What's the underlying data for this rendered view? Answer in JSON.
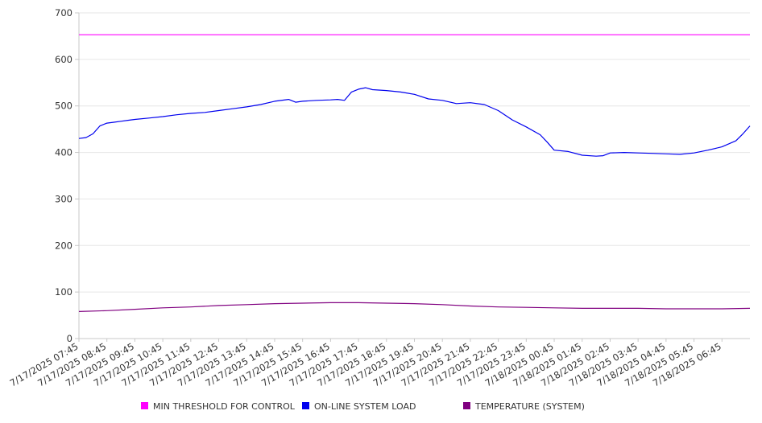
{
  "chart_data": {
    "type": "line",
    "title": "",
    "xlabel": "",
    "ylabel": "",
    "ylim": [
      0,
      700
    ],
    "yticks": [
      0,
      100,
      200,
      300,
      400,
      500,
      600,
      700
    ],
    "grid": true,
    "legend_position": "bottom",
    "x_tick_labels": [
      "7/17/2025 07:45",
      "7/17/2025 08:45",
      "7/17/2025 09:45",
      "7/17/2025 10:45",
      "7/17/2025 11:45",
      "7/17/2025 12:45",
      "7/17/2025 13:45",
      "7/17/2025 14:45",
      "7/17/2025 15:45",
      "7/17/2025 16:45",
      "7/17/2025 17:45",
      "7/17/2025 18:45",
      "7/17/2025 19:45",
      "7/17/2025 20:45",
      "7/17/2025 21:45",
      "7/17/2025 22:45",
      "7/17/2025 23:45",
      "7/18/2025 00:45",
      "7/18/2025 01:45",
      "7/18/2025 02:45",
      "7/18/2025 03:45",
      "7/18/2025 04:45",
      "7/18/2025 05:45",
      "7/18/2025 06:45"
    ],
    "x_end": "7/18/2025 07:45",
    "series": [
      {
        "name": "MIN THRESHOLD FOR CONTROL",
        "color": "#ff00ff",
        "points": [
          [
            "7/17/2025 07:45",
            653
          ],
          [
            "7/18/2025 07:45",
            653
          ]
        ]
      },
      {
        "name": "ON-LINE SYSTEM LOAD",
        "color": "#0000ee",
        "points": [
          [
            "7/17/2025 07:45",
            430
          ],
          [
            "7/17/2025 08:00",
            432
          ],
          [
            "7/17/2025 08:15",
            440
          ],
          [
            "7/17/2025 08:30",
            457
          ],
          [
            "7/17/2025 08:45",
            463
          ],
          [
            "7/17/2025 09:00",
            465
          ],
          [
            "7/17/2025 09:15",
            467
          ],
          [
            "7/17/2025 09:30",
            469
          ],
          [
            "7/17/2025 09:45",
            471
          ],
          [
            "7/17/2025 10:15",
            474
          ],
          [
            "7/17/2025 10:45",
            477
          ],
          [
            "7/17/2025 11:15",
            481
          ],
          [
            "7/17/2025 11:45",
            484
          ],
          [
            "7/17/2025 12:15",
            486
          ],
          [
            "7/17/2025 12:45",
            490
          ],
          [
            "7/17/2025 13:15",
            494
          ],
          [
            "7/17/2025 13:45",
            498
          ],
          [
            "7/17/2025 14:15",
            503
          ],
          [
            "7/17/2025 14:45",
            510
          ],
          [
            "7/17/2025 15:15",
            514
          ],
          [
            "7/17/2025 15:30",
            508
          ],
          [
            "7/17/2025 15:45",
            510
          ],
          [
            "7/17/2025 16:15",
            512
          ],
          [
            "7/17/2025 16:45",
            513
          ],
          [
            "7/17/2025 17:00",
            514
          ],
          [
            "7/17/2025 17:15",
            512
          ],
          [
            "7/17/2025 17:30",
            530
          ],
          [
            "7/17/2025 17:45",
            536
          ],
          [
            "7/17/2025 18:00",
            539
          ],
          [
            "7/17/2025 18:15",
            535
          ],
          [
            "7/17/2025 18:45",
            533
          ],
          [
            "7/17/2025 19:15",
            530
          ],
          [
            "7/17/2025 19:45",
            525
          ],
          [
            "7/17/2025 20:15",
            515
          ],
          [
            "7/17/2025 20:45",
            512
          ],
          [
            "7/17/2025 21:15",
            505
          ],
          [
            "7/17/2025 21:45",
            507
          ],
          [
            "7/17/2025 22:15",
            503
          ],
          [
            "7/17/2025 22:45",
            490
          ],
          [
            "7/17/2025 23:15",
            470
          ],
          [
            "7/17/2025 23:45",
            455
          ],
          [
            "7/18/2025 00:15",
            438
          ],
          [
            "7/18/2025 00:30",
            422
          ],
          [
            "7/18/2025 00:45",
            405
          ],
          [
            "7/18/2025 01:15",
            402
          ],
          [
            "7/18/2025 01:45",
            394
          ],
          [
            "7/18/2025 02:15",
            392
          ],
          [
            "7/18/2025 02:30",
            393
          ],
          [
            "7/18/2025 02:45",
            399
          ],
          [
            "7/18/2025 03:15",
            400
          ],
          [
            "7/18/2025 03:45",
            399
          ],
          [
            "7/18/2025 04:15",
            398
          ],
          [
            "7/18/2025 04:45",
            397
          ],
          [
            "7/18/2025 05:15",
            396
          ],
          [
            "7/18/2025 05:45",
            399
          ],
          [
            "7/18/2025 06:15",
            405
          ],
          [
            "7/18/2025 06:45",
            412
          ],
          [
            "7/18/2025 07:15",
            425
          ],
          [
            "7/18/2025 07:30",
            440
          ],
          [
            "7/18/2025 07:45",
            457
          ]
        ]
      },
      {
        "name": "TEMPERATURE (SYSTEM)",
        "color": "#800080",
        "points": [
          [
            "7/17/2025 07:45",
            58
          ],
          [
            "7/17/2025 08:45",
            60
          ],
          [
            "7/17/2025 09:45",
            63
          ],
          [
            "7/17/2025 10:45",
            66
          ],
          [
            "7/17/2025 11:45",
            68
          ],
          [
            "7/17/2025 12:45",
            71
          ],
          [
            "7/17/2025 13:45",
            73
          ],
          [
            "7/17/2025 14:45",
            75
          ],
          [
            "7/17/2025 15:45",
            76
          ],
          [
            "7/17/2025 16:45",
            77
          ],
          [
            "7/17/2025 17:45",
            77
          ],
          [
            "7/17/2025 18:45",
            76
          ],
          [
            "7/17/2025 19:45",
            75
          ],
          [
            "7/17/2025 20:45",
            73
          ],
          [
            "7/17/2025 21:45",
            70
          ],
          [
            "7/17/2025 22:45",
            68
          ],
          [
            "7/17/2025 23:45",
            67
          ],
          [
            "7/18/2025 00:45",
            66
          ],
          [
            "7/18/2025 01:45",
            65
          ],
          [
            "7/18/2025 02:45",
            65
          ],
          [
            "7/18/2025 03:45",
            65
          ],
          [
            "7/18/2025 04:45",
            64
          ],
          [
            "7/18/2025 05:45",
            64
          ],
          [
            "7/18/2025 06:45",
            64
          ],
          [
            "7/18/2025 07:45",
            65
          ]
        ]
      }
    ]
  }
}
